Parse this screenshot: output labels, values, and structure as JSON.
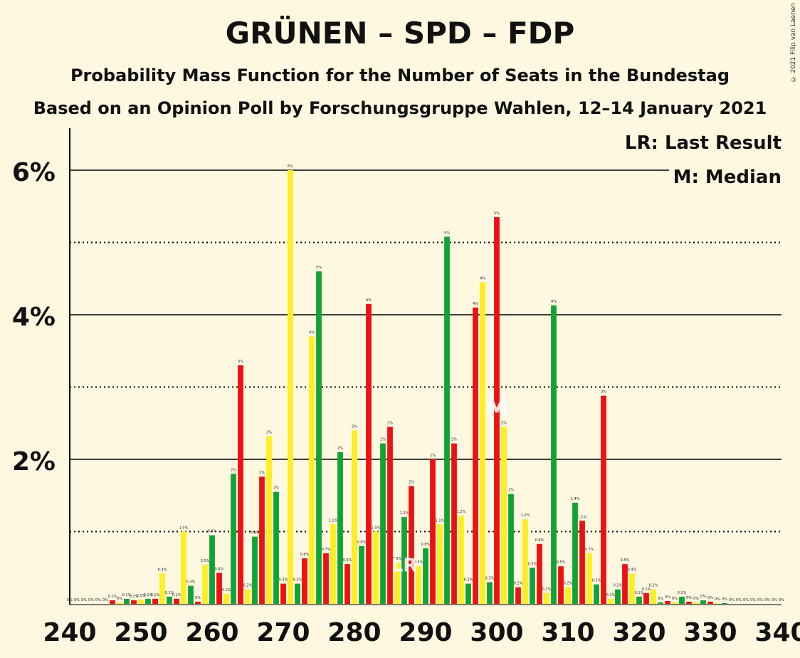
{
  "title": "GRÜNEN – SPD – FDP",
  "subtitle": "Probability Mass Function for the Number of Seats in the Bundestag",
  "subtitle2": "Based on an Opinion Poll by Forschungsgruppe Wahlen, 12–14 January 2021",
  "copyright": "© 2021 Filip van Laenen",
  "legend": {
    "lr": "LR: Last Result",
    "m": "M: Median"
  },
  "colors": {
    "background": "#fef8e1",
    "red": "#ee1111",
    "yellow": "#ffee22",
    "green": "#11a333"
  },
  "chart_data": {
    "type": "bar",
    "x_start": 240,
    "x_end": 340,
    "ylim": [
      0,
      6.6
    ],
    "y_ticks": [
      {
        "v": 2,
        "label": "2%"
      },
      {
        "v": 4,
        "label": "4%"
      },
      {
        "v": 6,
        "label": "6%"
      }
    ],
    "x_ticks": [
      240,
      250,
      260,
      270,
      280,
      290,
      300,
      310,
      320,
      330,
      340
    ],
    "median": 300,
    "median_label": "M",
    "last_result": 287,
    "last_result_label": "LR",
    "color_cycle": [
      "red",
      "yellow",
      "green"
    ],
    "values": [
      0,
      0,
      0,
      0,
      0,
      0,
      0.05,
      0.02,
      0.07,
      0.05,
      0.06,
      0.07,
      0.07,
      0.42,
      0.1,
      0.07,
      1.0,
      0.25,
      0.03,
      0.54,
      0.95,
      0.43,
      0.14,
      1.8,
      3.3,
      0.2,
      0.93,
      1.76,
      2.32,
      1.55,
      0.28,
      6.0,
      0.28,
      0.63,
      3.7,
      4.6,
      0.7,
      1.1,
      2.1,
      0.55,
      2.4,
      0.8,
      4.15,
      1.0,
      2.22,
      2.45,
      0.57,
      1.2,
      1.63,
      0.52,
      0.77,
      2.0,
      1.1,
      5.08,
      2.22,
      1.22,
      0.28,
      4.1,
      4.45,
      0.3,
      5.35,
      2.45,
      1.52,
      0.23,
      1.17,
      0.5,
      0.83,
      0.15,
      4.13,
      0.52,
      0.23,
      1.4,
      1.15,
      0.7,
      0.27,
      2.88,
      0.07,
      0.2,
      0.55,
      0.42,
      0.1,
      0.15,
      0.2,
      0.02,
      0.04,
      0.02,
      0.1,
      0.03,
      0.02,
      0.05,
      0.03,
      0.01,
      0.01,
      0,
      0,
      0,
      0,
      0,
      0,
      0,
      0
    ],
    "labels": [
      "0%",
      "0%",
      "0%",
      "0%",
      "0%",
      "0%",
      "0.1%",
      "0%",
      "0.1%",
      "0.1%",
      "0.1%",
      "0.1%",
      "0.1%",
      "0.4%",
      "0.1%",
      "0.1%",
      "1.0%",
      "0.3%",
      "0%",
      "0.5%",
      "0.9%",
      "0.4%",
      "0.1%",
      "2%",
      "3%",
      "0.2%",
      "0.9%",
      "2%",
      "2%",
      "2%",
      "0.3%",
      "6%",
      "0.3%",
      "0.6%",
      "4%",
      "5%",
      "0.7%",
      "1.1%",
      "2%",
      "0.5%",
      "2%",
      "0.8%",
      "4%",
      "1.0%",
      "2%",
      "2%",
      "0.6%",
      "1.2%",
      "2%",
      "0.5%",
      "0.8%",
      "2%",
      "1.1%",
      "5%",
      "2%",
      "1.2%",
      "0.3%",
      "4%",
      "4%",
      "0.3%",
      "5%",
      "2%",
      "2%",
      "0.2%",
      "1.2%",
      "0.5%",
      "0.8%",
      "0.1%",
      "4%",
      "0.5%",
      "0.2%",
      "1.4%",
      "1.1%",
      "0.7%",
      "0.3%",
      "3%",
      "0.1%",
      "0.2%",
      "0.5%",
      "0.4%",
      "0.1%",
      "0.1%",
      "0.2%",
      "0%",
      "0%",
      "0%",
      "0.1%",
      "0%",
      "0%",
      "0%",
      "0%",
      "0%",
      "0%",
      "0%",
      "0%",
      "0%",
      "0%",
      "0%",
      "0%",
      "0%",
      "0%"
    ]
  }
}
